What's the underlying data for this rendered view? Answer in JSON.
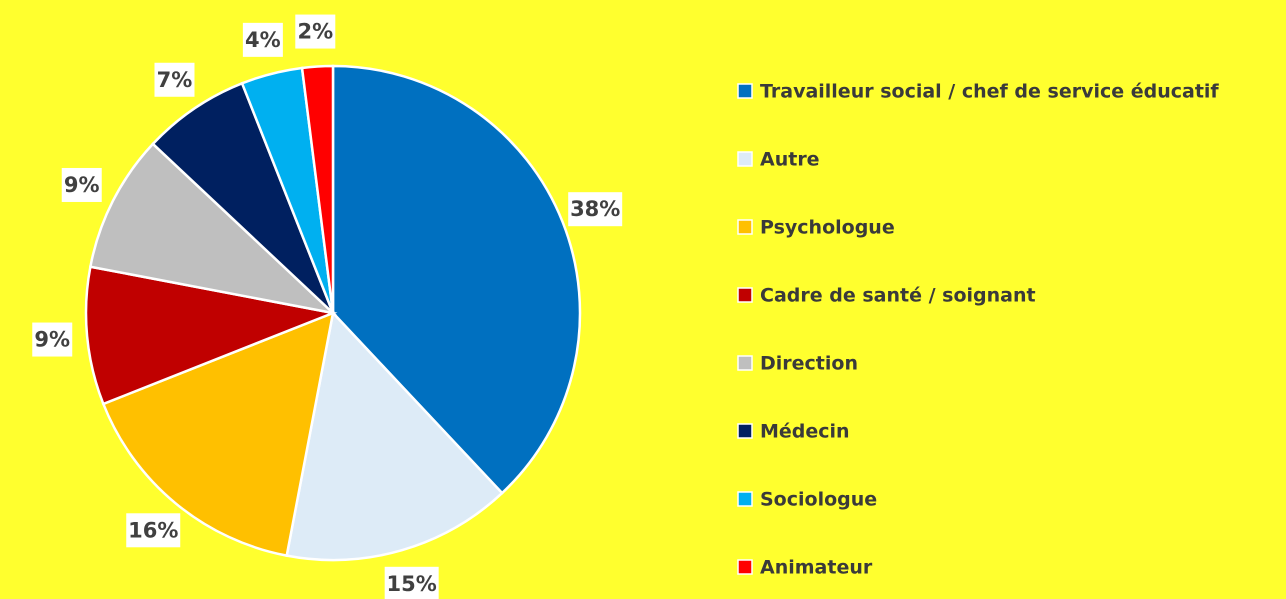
{
  "chart_data": {
    "type": "pie",
    "categories": [
      "Travailleur social / chef de service éducatif",
      "Autre",
      "Psychologue",
      "Cadre de santé / soignant",
      "Direction",
      "Médecin",
      "Sociologue",
      "Animateur"
    ],
    "values": [
      38,
      15,
      16,
      9,
      9,
      7,
      4,
      2
    ],
    "value_labels": [
      "38%",
      "15%",
      "16%",
      "9%",
      "9%",
      "7%",
      "4%",
      "2%"
    ],
    "colors": [
      "#0070c0",
      "#ddebf7",
      "#ffc000",
      "#c00000",
      "#bfbfbf",
      "#002060",
      "#00b0f0",
      "#ff0000"
    ],
    "legend": "right"
  }
}
